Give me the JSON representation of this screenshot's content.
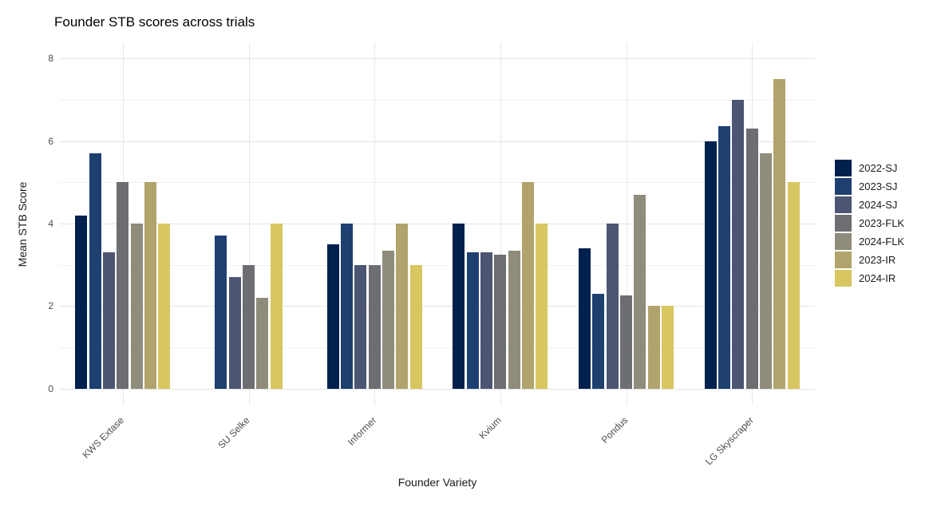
{
  "chart_data": {
    "type": "bar",
    "title": "Founder STB scores across trials",
    "xlabel": "Founder Variety",
    "ylabel": "Mean STB Score",
    "categories": [
      "KWS Extase",
      "SU Selke",
      "Informer",
      "Kvium",
      "Pondus",
      "LG Skyscraper"
    ],
    "series": [
      {
        "name": "2022-SJ",
        "color": "#00204d",
        "values": [
          4.2,
          null,
          3.5,
          4.0,
          3.4,
          6.0
        ]
      },
      {
        "name": "2023-SJ",
        "color": "#1e4071",
        "values": [
          5.7,
          3.7,
          4.0,
          3.3,
          2.3,
          6.35
        ]
      },
      {
        "name": "2024-SJ",
        "color": "#4c5673",
        "values": [
          3.3,
          2.7,
          3.0,
          3.3,
          4.0,
          7.0
        ]
      },
      {
        "name": "2023-FLK",
        "color": "#6c6e71",
        "values": [
          5.0,
          3.0,
          3.0,
          3.25,
          2.25,
          6.3
        ]
      },
      {
        "name": "2024-FLK",
        "color": "#8f8c7b",
        "values": [
          4.0,
          2.2,
          3.35,
          3.35,
          4.7,
          5.7
        ]
      },
      {
        "name": "2023-IR",
        "color": "#b0a46c",
        "values": [
          5.0,
          null,
          4.0,
          5.0,
          2.0,
          7.5
        ]
      },
      {
        "name": "2024-IR",
        "color": "#d8c660",
        "values": [
          4.0,
          4.0,
          3.0,
          4.0,
          2.0,
          5.0
        ]
      }
    ],
    "y_ticks": [
      0,
      2,
      4,
      6,
      8
    ],
    "y_minor_ticks": [
      1,
      3,
      5,
      7
    ],
    "ylim": [
      0,
      8
    ],
    "grid": true,
    "legend_position": "right",
    "legend_entries": [
      "2022-SJ",
      "2023-SJ",
      "2024-SJ",
      "2023-FLK",
      "2024-FLK",
      "2023-IR",
      "2024-IR"
    ]
  },
  "style": {
    "background": "#ffffff",
    "grid_major_color": "#e4e4e4",
    "grid_minor_color": "#f0f0f0",
    "tick_label_color": "#4d4d4d",
    "text_color": "#1a1a1a"
  }
}
